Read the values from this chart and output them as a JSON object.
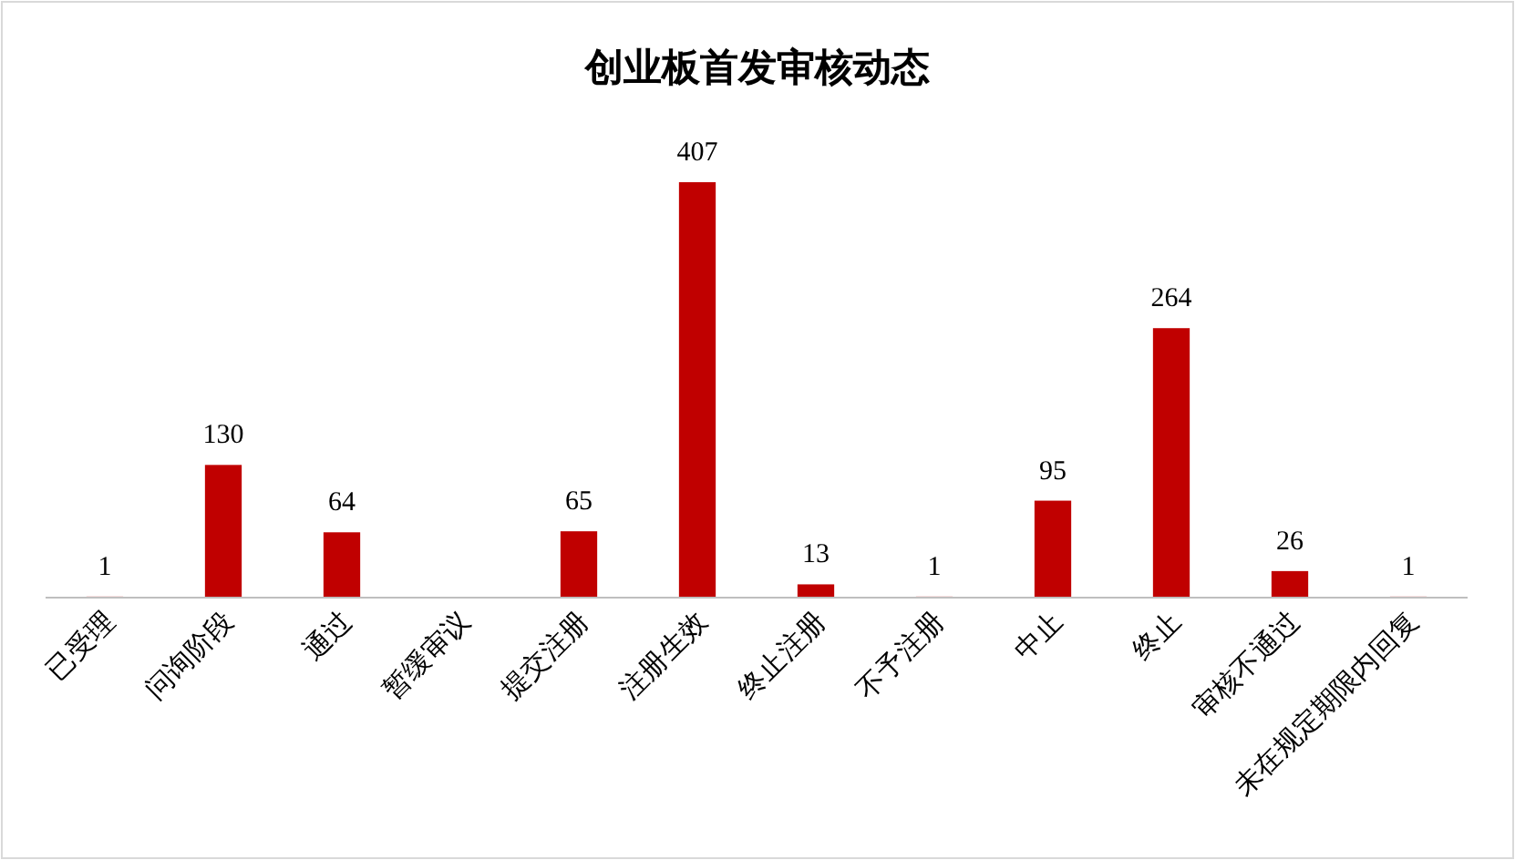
{
  "chart_data": {
    "type": "bar",
    "title": "创业板首发审核动态",
    "categories": [
      "已受理",
      "问询阶段",
      "通过",
      "暂缓审议",
      "提交注册",
      "注册生效",
      "终止注册",
      "不予注册",
      "中止",
      "终止",
      "审核不通过",
      "未在规定期限内回复"
    ],
    "values": [
      1,
      130,
      64,
      null,
      65,
      407,
      13,
      1,
      95,
      264,
      26,
      1
    ],
    "color": "#c00000",
    "data_labels": true
  }
}
